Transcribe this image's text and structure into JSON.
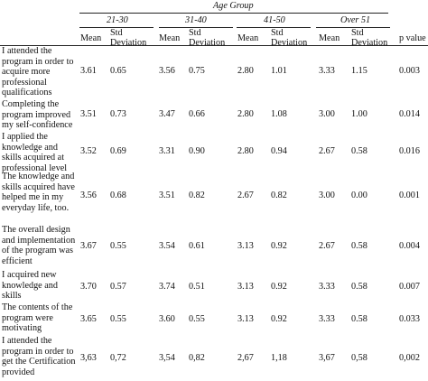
{
  "header": {
    "group_title": "Age Group",
    "groups": [
      "21-30",
      "31-40",
      "41-50",
      "Over 51"
    ],
    "mean_label": "Mean",
    "std_line1": "Std",
    "std_line2": "Deviation",
    "p_label": "p value"
  },
  "rows": [
    {
      "item": "I attended the program in order to acquire more professional qualifications",
      "values": [
        "3.61",
        "0.65",
        "3.56",
        "0.75",
        "2.80",
        "1.01",
        "3.33",
        "1.15",
        "0.003"
      ]
    },
    {
      "item": "Completing the program improved my self-confidence",
      "values": [
        "3.51",
        "0.73",
        "3.47",
        "0.66",
        "2.80",
        "1.08",
        "3.00",
        "1.00",
        "0.014"
      ]
    },
    {
      "item": "I applied the knowledge and skills acquired at professional level",
      "values": [
        "3.52",
        "0.69",
        "3.31",
        "0.90",
        "2.80",
        "0.94",
        "2.67",
        "0.58",
        "0.016"
      ]
    },
    {
      "item": "The knowledge and skills acquired have helped me in my everyday life, too.",
      "values": [
        "3.56",
        "0.68",
        "3.51",
        "0.82",
        "2.67",
        "0.82",
        "3.00",
        "0.00",
        "0.001"
      ]
    },
    {
      "item": "The overall design and implementation of the program was efficient",
      "values": [
        "3.67",
        "0.55",
        "3.54",
        "0.61",
        "3.13",
        "0.92",
        "2.67",
        "0.58",
        "0.004"
      ]
    },
    {
      "item": "I acquired new knowledge and skills",
      "values": [
        "3.70",
        "0.57",
        "3.74",
        "0.51",
        "3.13",
        "0.92",
        "3.33",
        "0.58",
        "0.007"
      ]
    },
    {
      "item": "The contents of the program were motivating",
      "values": [
        "3.65",
        "0.55",
        "3.60",
        "0.55",
        "3.13",
        "0.92",
        "3.33",
        "0.58",
        "0.033"
      ]
    },
    {
      "item": "I attended the program in order to get the Certification provided",
      "values": [
        "3,63",
        "0,72",
        "3,54",
        "0,82",
        "2,67",
        "1,18",
        "3,67",
        "0,58",
        "0,002"
      ]
    }
  ]
}
